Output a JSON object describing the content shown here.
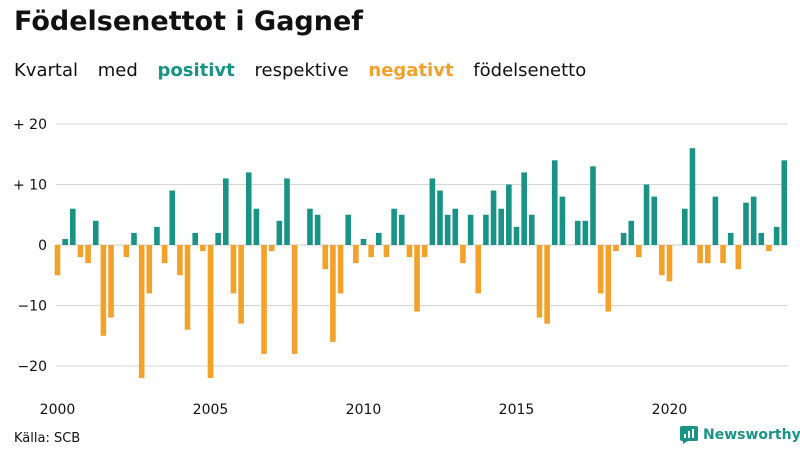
{
  "title": "Födelsenettot i Gagnef",
  "subtitle": {
    "parts": [
      "Kvartal",
      "med",
      "positivt",
      "respektive",
      "negativt",
      "födelsenetto"
    ]
  },
  "colors": {
    "positive": "#1a9387",
    "negative": "#f2a12b",
    "grid": "#d6d6d6",
    "text": "#111111"
  },
  "source": "Källa: SCB",
  "brand": {
    "name": "Newsworthy",
    "icon": "newsworthy-logo-icon"
  },
  "chart_data": {
    "type": "bar",
    "title": "Födelsenettot i Gagnef",
    "subtitle": "Kvartal med positivt respektive negativt födelsenetto",
    "ylim": [
      -24,
      22
    ],
    "yticks": [
      20,
      10,
      0,
      -10,
      -20
    ],
    "ytick_labels": [
      "+ 20",
      "+ 10",
      "0",
      "−10",
      "−20"
    ],
    "xticks": [
      2000,
      2005,
      2010,
      2015,
      2020
    ],
    "x_start_year": 2000,
    "grid": true,
    "values": [
      -5,
      1,
      6,
      -2,
      -3,
      4,
      -15,
      -12,
      0,
      -2,
      2,
      -22,
      -8,
      3,
      -3,
      9,
      -5,
      -14,
      2,
      -1,
      -22,
      2,
      11,
      -8,
      -13,
      12,
      6,
      -18,
      -1,
      4,
      11,
      -18,
      0,
      6,
      5,
      -4,
      -16,
      -8,
      5,
      -3,
      1,
      -2,
      2,
      -2,
      6,
      5,
      -2,
      -11,
      -2,
      11,
      9,
      5,
      6,
      -3,
      5,
      -8,
      5,
      9,
      6,
      10,
      3,
      12,
      5,
      -12,
      -13,
      14,
      8,
      0,
      4,
      4,
      13,
      -8,
      -11,
      -1,
      2,
      4,
      -2,
      10,
      8,
      -5,
      -6,
      0,
      6,
      16,
      -3,
      -3,
      8,
      -3,
      2,
      -4,
      7,
      8,
      2,
      -1,
      3,
      14
    ]
  }
}
